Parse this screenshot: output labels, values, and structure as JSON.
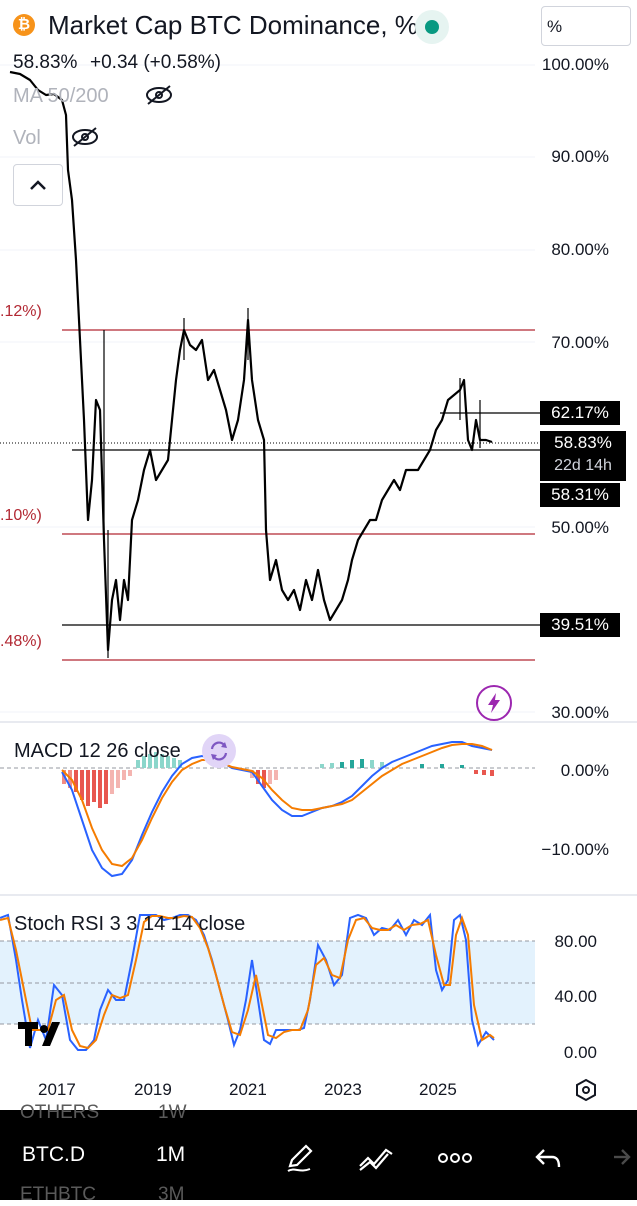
{
  "header": {
    "title": "Market Cap BTC Dominance, %",
    "price": "58.83%",
    "change": "+0.34 (+0.58%)",
    "scale_button": "%",
    "ma_label": "MA 50/200",
    "vol_label": "Vol",
    "coin_symbol": "₿"
  },
  "price_axis": [
    "100.00%",
    "90.00%",
    "80.00%",
    "70.00%",
    "50.00%",
    "30.00%"
  ],
  "price_tags": {
    "resistance": "62.17%",
    "last": "58.83%",
    "countdown": "22d 14h",
    "other": "58.31%",
    "support": "39.51%"
  },
  "left_fib_labels": [
    ".12%)",
    ".10%)",
    ".48%)"
  ],
  "macd": {
    "label": "MACD 12 26 close",
    "axis": [
      "0.00%",
      "−10.00%"
    ]
  },
  "stoch": {
    "label": "Stoch RSI 3 3 14 14 close",
    "axis": [
      "80.00",
      "40.00",
      "0.00"
    ]
  },
  "x_axis": [
    "2017",
    "2019",
    "2021",
    "2023",
    "2025"
  ],
  "bottom_bar": {
    "symbol": "BTC.D",
    "interval": "1M",
    "ghost_above_symbol": "OTHERS",
    "ghost_above_interval": "1W",
    "ghost_below_symbol": "ETHBTC",
    "ghost_below_interval": "3M"
  },
  "colors": {
    "accent": "#2962ff",
    "orange": "#f57c00",
    "red": "#b22833",
    "teal": "#26a69a",
    "bitcoin": "#f7931a"
  }
}
